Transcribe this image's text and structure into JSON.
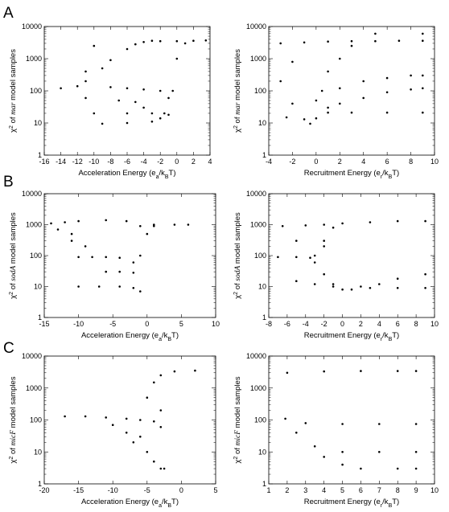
{
  "panel_labels": [
    "A",
    "B",
    "C"
  ],
  "chart_data": [
    {
      "type": "scatter",
      "panel": "A",
      "side": "left",
      "xlim": [
        -16,
        4
      ],
      "xticks": [
        -16,
        -14,
        -12,
        -10,
        -8,
        -6,
        -4,
        -2,
        0,
        2,
        4
      ],
      "ylim": [
        1,
        10000
      ],
      "yscale": "log",
      "yticks": [
        1,
        10,
        100,
        1000,
        10000
      ],
      "xlabel": {
        "pre": "Acceleration Energy (e",
        "sub1": "a",
        "mid": "/k",
        "sub2": "B",
        "post": "T)"
      },
      "ylabel": {
        "pre": "χ",
        "sup": "2",
        "mid": " of ",
        "italic": "mar",
        "post": " model samples"
      },
      "points": [
        [
          -14,
          120
        ],
        [
          -12,
          140
        ],
        [
          -11,
          200
        ],
        [
          -9,
          500
        ],
        [
          -8,
          900
        ],
        [
          -6,
          2000
        ],
        [
          -5,
          2800
        ],
        [
          -4,
          3300
        ],
        [
          -3,
          3600
        ],
        [
          -2,
          3500
        ],
        [
          0,
          3500
        ],
        [
          2,
          3600
        ],
        [
          3.5,
          3700
        ],
        [
          -8,
          130
        ],
        [
          -6,
          120
        ],
        [
          -4,
          110
        ],
        [
          -2,
          100
        ],
        [
          -1,
          60
        ],
        [
          -10,
          20
        ],
        [
          -6,
          20
        ],
        [
          -3,
          20
        ],
        [
          -1.5,
          20
        ],
        [
          -9,
          9.5
        ],
        [
          -6,
          10
        ],
        [
          -3,
          11
        ],
        [
          -2,
          14
        ],
        [
          -1,
          18
        ],
        [
          -0.5,
          100
        ],
        [
          0,
          1000
        ],
        [
          1,
          3000
        ],
        [
          -11,
          60
        ],
        [
          -7,
          50
        ],
        [
          -5,
          45
        ],
        [
          -4,
          30
        ],
        [
          -10,
          2500
        ],
        [
          -11,
          400
        ]
      ]
    },
    {
      "type": "scatter",
      "panel": "A",
      "side": "right",
      "xlim": [
        -4,
        10
      ],
      "xticks": [
        -4,
        -2,
        0,
        2,
        4,
        6,
        8,
        10
      ],
      "ylim": [
        1,
        10000
      ],
      "yscale": "log",
      "yticks": [
        1,
        10,
        100,
        1000,
        10000
      ],
      "xlabel": {
        "pre": "Recruitment Energy (e",
        "sub1": "r",
        "mid": "/k",
        "sub2": "B",
        "post": "T)"
      },
      "ylabel": {
        "pre": "χ",
        "sup": "2",
        "mid": " of ",
        "italic": "mar",
        "post": " model samples"
      },
      "points": [
        [
          -3,
          3000
        ],
        [
          -1,
          3200
        ],
        [
          1,
          3400
        ],
        [
          3,
          3500
        ],
        [
          5,
          3500
        ],
        [
          7,
          3600
        ],
        [
          9,
          3600
        ],
        [
          5,
          6000
        ],
        [
          9,
          6000
        ],
        [
          -2.5,
          15
        ],
        [
          -1,
          13
        ],
        [
          -0.5,
          9.5
        ],
        [
          0,
          14
        ],
        [
          1,
          21
        ],
        [
          3,
          21
        ],
        [
          6,
          21
        ],
        [
          9,
          21
        ],
        [
          0.5,
          100
        ],
        [
          1,
          400
        ],
        [
          2,
          1000
        ],
        [
          3,
          2500
        ],
        [
          0,
          50
        ],
        [
          2,
          120
        ],
        [
          4,
          200
        ],
        [
          6,
          250
        ],
        [
          8,
          300
        ],
        [
          9,
          300
        ],
        [
          1,
          30
        ],
        [
          2,
          40
        ],
        [
          4,
          60
        ],
        [
          6,
          90
        ],
        [
          8,
          110
        ],
        [
          9,
          120
        ],
        [
          -2,
          800
        ],
        [
          -3,
          200
        ],
        [
          -2,
          40
        ]
      ]
    },
    {
      "type": "scatter",
      "panel": "B",
      "side": "left",
      "xlim": [
        -15,
        10
      ],
      "xticks": [
        -15,
        -10,
        -5,
        0,
        5,
        10
      ],
      "ylim": [
        1,
        10000
      ],
      "yscale": "log",
      "yticks": [
        1,
        10,
        100,
        1000,
        10000
      ],
      "xlabel": {
        "pre": "Acceleration Energy (e",
        "sub1": "a",
        "mid": "/k",
        "sub2": "B",
        "post": "T)"
      },
      "ylabel": {
        "pre": "χ",
        "sup": "2",
        "mid": " of ",
        "italic": "sodA",
        "post": " model samples"
      },
      "points": [
        [
          -14,
          1100
        ],
        [
          -12,
          1200
        ],
        [
          -10,
          1300
        ],
        [
          -6,
          1400
        ],
        [
          -3,
          1300
        ],
        [
          -1,
          900
        ],
        [
          1,
          1000
        ],
        [
          4,
          1000
        ],
        [
          6,
          1000
        ],
        [
          -13,
          700
        ],
        [
          -11,
          300
        ],
        [
          -10,
          90
        ],
        [
          -8,
          90
        ],
        [
          -6,
          90
        ],
        [
          -4,
          85
        ],
        [
          -2,
          60
        ],
        [
          -10,
          10
        ],
        [
          -7,
          10
        ],
        [
          -4,
          10
        ],
        [
          -2,
          9
        ],
        [
          -1,
          7
        ],
        [
          -6,
          30
        ],
        [
          -4,
          30
        ],
        [
          -2,
          28
        ],
        [
          -1,
          100
        ],
        [
          0,
          500
        ],
        [
          1,
          900
        ],
        [
          -9,
          200
        ],
        [
          -11,
          500
        ]
      ]
    },
    {
      "type": "scatter",
      "panel": "B",
      "side": "right",
      "xlim": [
        -8,
        10
      ],
      "xticks": [
        -8,
        -6,
        -4,
        -2,
        0,
        2,
        4,
        6,
        8,
        10
      ],
      "ylim": [
        1,
        10000
      ],
      "yscale": "log",
      "yticks": [
        1,
        10,
        100,
        1000,
        10000
      ],
      "xlabel": {
        "pre": "Recruitment Energy (e",
        "sub1": "r",
        "mid": "/k",
        "sub2": "B",
        "post": "T)"
      },
      "ylabel": {
        "pre": "χ",
        "sup": "2",
        "mid": " of ",
        "italic": "sodA",
        "post": " model samples"
      },
      "points": [
        [
          -6.5,
          900
        ],
        [
          -4,
          950
        ],
        [
          -2,
          1000
        ],
        [
          0,
          1100
        ],
        [
          3,
          1200
        ],
        [
          6,
          1300
        ],
        [
          9,
          1300
        ],
        [
          -7,
          90
        ],
        [
          -5,
          90
        ],
        [
          -3.5,
          85
        ],
        [
          -3,
          100
        ],
        [
          -2,
          300
        ],
        [
          -1,
          800
        ],
        [
          -3,
          60
        ],
        [
          -2,
          25
        ],
        [
          -1,
          12
        ],
        [
          0,
          8
        ],
        [
          1,
          8
        ],
        [
          2,
          10
        ],
        [
          4,
          12
        ],
        [
          6,
          18
        ],
        [
          9,
          25
        ],
        [
          -5,
          15
        ],
        [
          -3,
          12
        ],
        [
          -1,
          10
        ],
        [
          3,
          9
        ],
        [
          6,
          9
        ],
        [
          9,
          9
        ],
        [
          -5,
          300
        ],
        [
          -2,
          200
        ]
      ]
    },
    {
      "type": "scatter",
      "panel": "C",
      "side": "left",
      "xlim": [
        -20,
        5
      ],
      "xticks": [
        -20,
        -15,
        -10,
        -5,
        0,
        5
      ],
      "ylim": [
        1,
        10000
      ],
      "yscale": "log",
      "yticks": [
        1,
        10,
        100,
        1000,
        10000
      ],
      "xlabel": {
        "pre": "Acceleration Energy (e",
        "sub1": "a",
        "mid": "/k",
        "sub2": "B",
        "post": "T)"
      },
      "ylabel": {
        "pre": "χ",
        "sup": "2",
        "mid": " of ",
        "italic": "micF",
        "post": " model samples"
      },
      "points": [
        [
          -17,
          130
        ],
        [
          -14,
          130
        ],
        [
          -11,
          120
        ],
        [
          -8,
          110
        ],
        [
          -6,
          100
        ],
        [
          -4,
          90
        ],
        [
          -3,
          60
        ],
        [
          -5,
          500
        ],
        [
          -4,
          1500
        ],
        [
          -3,
          2500
        ],
        [
          -1,
          3300
        ],
        [
          2,
          3500
        ],
        [
          -6,
          30
        ],
        [
          -5,
          10
        ],
        [
          -4,
          5
        ],
        [
          -3,
          3
        ],
        [
          -2.5,
          3
        ],
        [
          -10,
          70
        ],
        [
          -8,
          40
        ],
        [
          -7,
          20
        ],
        [
          -3,
          200
        ]
      ]
    },
    {
      "type": "scatter",
      "panel": "C",
      "side": "right",
      "xlim": [
        1,
        10
      ],
      "xticks": [
        1,
        2,
        3,
        4,
        5,
        6,
        7,
        8,
        9,
        10
      ],
      "ylim": [
        1,
        10000
      ],
      "yscale": "log",
      "yticks": [
        1,
        10,
        100,
        1000,
        10000
      ],
      "xlabel": {
        "pre": "Recruitment Energy (e",
        "sub1": "r",
        "mid": "/k",
        "sub2": "B",
        "post": "T)"
      },
      "ylabel": {
        "pre": "χ",
        "sup": "2",
        "mid": " of ",
        "italic": "micF",
        "post": " model samples"
      },
      "points": [
        [
          2,
          3000
        ],
        [
          4,
          3300
        ],
        [
          6,
          3400
        ],
        [
          8,
          3400
        ],
        [
          9,
          3400
        ],
        [
          1.9,
          110
        ],
        [
          3,
          80
        ],
        [
          5,
          75
        ],
        [
          7,
          75
        ],
        [
          9,
          75
        ],
        [
          2.5,
          40
        ],
        [
          3.5,
          15
        ],
        [
          4,
          7
        ],
        [
          5,
          4
        ],
        [
          6,
          3
        ],
        [
          8,
          3
        ],
        [
          9,
          3
        ],
        [
          5,
          10
        ],
        [
          7,
          10
        ],
        [
          9,
          10
        ]
      ]
    }
  ]
}
